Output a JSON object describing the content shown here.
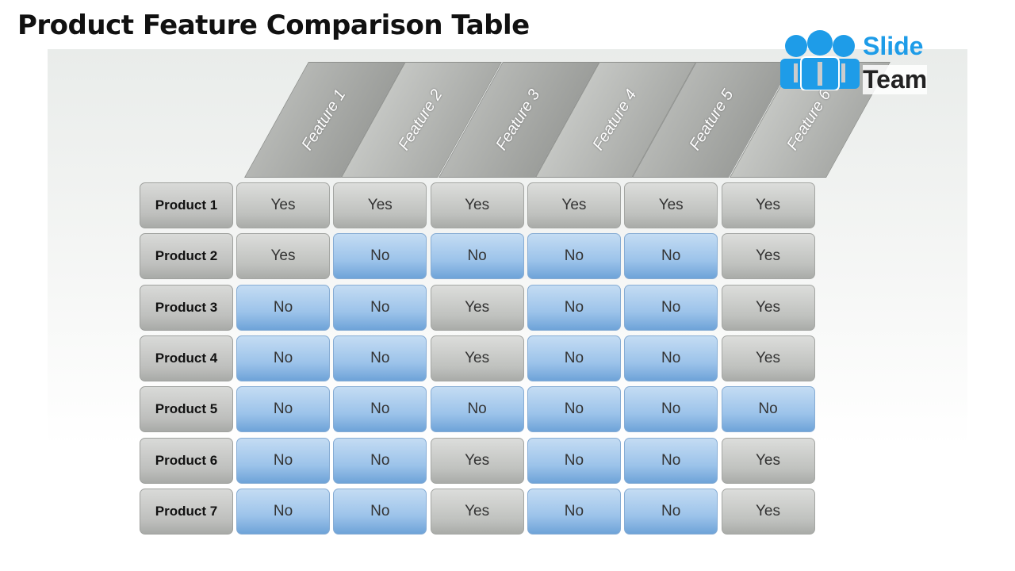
{
  "title": "Product Feature Comparison Table",
  "logo": {
    "line1": "Slide",
    "line2": "Team",
    "color": "#1e9ce8"
  },
  "colors": {
    "yes": "#bfc1be",
    "no": "#9cc3ea"
  },
  "features": [
    "Feature 1",
    "Feature 2",
    "Feature 3",
    "Feature 4",
    "Feature 5",
    "Feature 6"
  ],
  "rows": [
    {
      "product": "Product 1",
      "values": [
        "Yes",
        "Yes",
        "Yes",
        "Yes",
        "Yes",
        "Yes"
      ]
    },
    {
      "product": "Product 2",
      "values": [
        "Yes",
        "No",
        "No",
        "No",
        "No",
        "Yes"
      ]
    },
    {
      "product": "Product 3",
      "values": [
        "No",
        "No",
        "Yes",
        "No",
        "No",
        "Yes"
      ]
    },
    {
      "product": "Product 4",
      "values": [
        "No",
        "No",
        "Yes",
        "No",
        "No",
        "Yes"
      ]
    },
    {
      "product": "Product 5",
      "values": [
        "No",
        "No",
        "No",
        "No",
        "No",
        "No"
      ]
    },
    {
      "product": "Product 6",
      "values": [
        "No",
        "No",
        "Yes",
        "No",
        "No",
        "Yes"
      ]
    },
    {
      "product": "Product 7",
      "values": [
        "No",
        "No",
        "Yes",
        "No",
        "No",
        "Yes"
      ]
    }
  ]
}
